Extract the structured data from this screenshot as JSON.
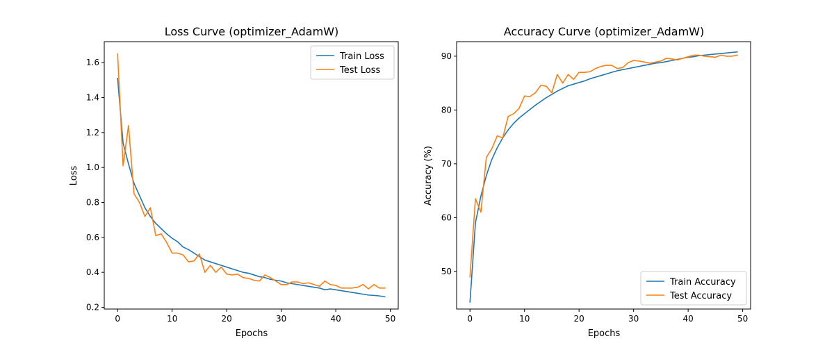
{
  "chart_data": [
    {
      "type": "line",
      "title": "Loss Curve (optimizer_AdamW)",
      "xlabel": "Epochs",
      "ylabel": "Loss",
      "xlim": [
        -2.45,
        51.45
      ],
      "ylim": [
        0.19,
        1.72
      ],
      "xticks": [
        0,
        10,
        20,
        30,
        40,
        50
      ],
      "yticks": [
        0.2,
        0.4,
        0.6,
        0.8,
        1.0,
        1.2,
        1.4,
        1.6
      ],
      "ytick_labels": [
        "0.2",
        "0.4",
        "0.6",
        "0.8",
        "1.0",
        "1.2",
        "1.4",
        "1.6"
      ],
      "legend_position": "upper right",
      "x": [
        0,
        1,
        2,
        3,
        4,
        5,
        6,
        7,
        8,
        9,
        10,
        11,
        12,
        13,
        14,
        15,
        16,
        17,
        18,
        19,
        20,
        21,
        22,
        23,
        24,
        25,
        26,
        27,
        28,
        29,
        30,
        31,
        32,
        33,
        34,
        35,
        36,
        37,
        38,
        39,
        40,
        41,
        42,
        43,
        44,
        45,
        46,
        47,
        48,
        49
      ],
      "series": [
        {
          "name": "Train Loss",
          "color": "#1f77b4",
          "values": [
            1.51,
            1.14,
            1.02,
            0.91,
            0.84,
            0.77,
            0.72,
            0.68,
            0.65,
            0.62,
            0.595,
            0.575,
            0.545,
            0.53,
            0.51,
            0.49,
            0.47,
            0.46,
            0.45,
            0.44,
            0.43,
            0.42,
            0.41,
            0.4,
            0.395,
            0.385,
            0.375,
            0.37,
            0.36,
            0.355,
            0.35,
            0.34,
            0.335,
            0.33,
            0.325,
            0.32,
            0.315,
            0.31,
            0.3,
            0.305,
            0.3,
            0.295,
            0.29,
            0.285,
            0.28,
            0.275,
            0.27,
            0.268,
            0.265,
            0.26
          ]
        },
        {
          "name": "Test Loss",
          "color": "#ff7f0e",
          "values": [
            1.65,
            1.01,
            1.24,
            0.85,
            0.8,
            0.72,
            0.77,
            0.61,
            0.62,
            0.57,
            0.51,
            0.51,
            0.5,
            0.46,
            0.465,
            0.505,
            0.4,
            0.44,
            0.4,
            0.43,
            0.39,
            0.385,
            0.39,
            0.37,
            0.365,
            0.355,
            0.35,
            0.385,
            0.37,
            0.35,
            0.33,
            0.33,
            0.345,
            0.345,
            0.335,
            0.34,
            0.33,
            0.32,
            0.35,
            0.33,
            0.325,
            0.31,
            0.31,
            0.31,
            0.315,
            0.33,
            0.305,
            0.33,
            0.31,
            0.31
          ]
        }
      ]
    },
    {
      "type": "line",
      "title": "Accuracy Curve (optimizer_AdamW)",
      "xlabel": "Epochs",
      "ylabel": "Accuracy (%)",
      "xlim": [
        -2.45,
        51.45
      ],
      "ylim": [
        43.0,
        92.7
      ],
      "xticks": [
        0,
        10,
        20,
        30,
        40,
        50
      ],
      "yticks": [
        50,
        60,
        70,
        80,
        90
      ],
      "ytick_labels": [
        "50",
        "60",
        "70",
        "80",
        "90"
      ],
      "legend_position": "lower right",
      "x": [
        0,
        1,
        2,
        3,
        4,
        5,
        6,
        7,
        8,
        9,
        10,
        11,
        12,
        13,
        14,
        15,
        16,
        17,
        18,
        19,
        20,
        21,
        22,
        23,
        24,
        25,
        26,
        27,
        28,
        29,
        30,
        31,
        32,
        33,
        34,
        35,
        36,
        37,
        38,
        39,
        40,
        41,
        42,
        43,
        44,
        45,
        46,
        47,
        48,
        49
      ],
      "series": [
        {
          "name": "Train Accuracy",
          "color": "#1f77b4",
          "values": [
            44.3,
            59.0,
            64.0,
            67.8,
            70.8,
            73.0,
            74.8,
            76.3,
            77.5,
            78.5,
            79.3,
            80.1,
            80.9,
            81.6,
            82.3,
            82.9,
            83.5,
            84.0,
            84.5,
            84.8,
            85.1,
            85.4,
            85.8,
            86.1,
            86.4,
            86.7,
            87.0,
            87.3,
            87.5,
            87.7,
            87.9,
            88.1,
            88.3,
            88.5,
            88.7,
            88.8,
            89.0,
            89.2,
            89.4,
            89.6,
            89.8,
            89.9,
            90.1,
            90.2,
            90.3,
            90.4,
            90.5,
            90.6,
            90.7,
            90.8
          ]
        },
        {
          "name": "Test Accuracy",
          "color": "#ff7f0e",
          "values": [
            49.0,
            63.5,
            61.0,
            71.2,
            72.8,
            75.2,
            74.8,
            78.8,
            79.3,
            80.3,
            82.6,
            82.5,
            83.2,
            84.6,
            84.4,
            83.2,
            86.6,
            85.0,
            86.6,
            85.7,
            87.0,
            87.0,
            87.1,
            87.7,
            88.1,
            88.3,
            88.3,
            87.7,
            87.9,
            88.8,
            89.2,
            89.1,
            88.9,
            88.7,
            88.9,
            89.1,
            89.6,
            89.5,
            89.3,
            89.6,
            89.9,
            90.2,
            90.2,
            90.0,
            89.9,
            89.8,
            90.2,
            90.0,
            90.0,
            90.2
          ]
        }
      ]
    }
  ]
}
